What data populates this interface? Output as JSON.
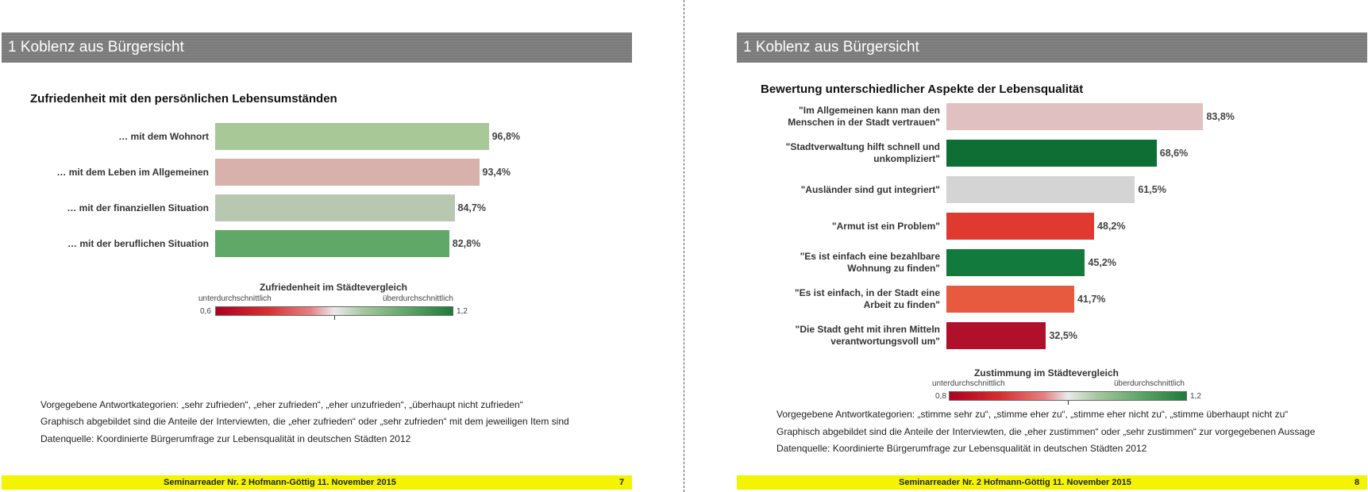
{
  "left": {
    "header": "1 Koblenz aus Bürgersicht",
    "subtitle": "Zufriedenheit mit den persönlichen Lebensumständen",
    "legend": {
      "title": "Zufriedenheit im Städtevergleich",
      "low_label": "unterdurchschnittlich",
      "high_label": "überdurchschnittlich",
      "min": "0,6",
      "max": "1,2"
    },
    "notes": [
      "Vorgegebene Antwortkategorien:  „sehr zufrieden“, „eher zufrieden“, „eher unzufrieden“, „überhaupt nicht zufrieden“",
      "Graphisch abgebildet sind die Anteile der Interviewten, die „eher zufrieden“ oder „sehr zufrieden“ mit dem jeweiligen Item sind",
      "Datenquelle: Koordinierte Bürgerumfrage zur Lebensqualität in deutschen Städten 2012"
    ],
    "footer": "Seminarreader Nr. 2 Hofmann-Göttig 11. November 2015",
    "page_number": "7"
  },
  "right": {
    "header": "1 Koblenz aus Bürgersicht",
    "subtitle": "Bewertung unterschiedlicher Aspekte der Lebensqualität",
    "legend": {
      "title": "Zustimmung im Städtevergleich",
      "low_label": "unterdurchschnittlich",
      "high_label": "überdurchschnittlich",
      "min": "0,8",
      "max": "1,2"
    },
    "notes": [
      "Vorgegebene Antwortkategorien:  „stimme sehr zu“, „stimme eher zu“, „stimme eher nicht zu“, „stimme überhaupt nicht zu“",
      "Graphisch abgebildet sind die Anteile der Interviewten, die „eher zustimmen“ oder „sehr zustimmen“ zur vorgegebenen Aussage",
      "Datenquelle: Koordinierte Bürgerumfrage zur Lebensqualität in deutschen Städten 2012"
    ],
    "footer": "Seminarreader Nr. 2 Hofmann-Göttig 11. November 2015",
    "page_number": "8"
  },
  "chart_data": [
    {
      "type": "bar",
      "orientation": "horizontal",
      "title": "Zufriedenheit mit den persönlichen Lebensumständen",
      "categories": [
        "… mit dem Wohnort",
        "… mit dem Leben im Allgemeinen",
        "… mit der finanziellen Situation",
        "… mit der beruflichen Situation"
      ],
      "values": [
        96.8,
        93.4,
        84.7,
        82.8
      ],
      "value_labels": [
        "96,8%",
        "93,4%",
        "84,7%",
        "82,8%"
      ],
      "bar_colors": [
        "#a8c898",
        "#d8b0ac",
        "#b8c8b0",
        "#5fa868"
      ],
      "xlim": [
        0,
        100
      ],
      "unit": "%"
    },
    {
      "type": "bar",
      "orientation": "horizontal",
      "title": "Bewertung unterschiedlicher Aspekte der Lebensqualität",
      "categories": [
        [
          "\"Im Allgemeinen kann man den",
          "Menschen in der Stadt vertrauen\""
        ],
        [
          "\"Stadtverwaltung hilft schnell und",
          "unkompliziert\""
        ],
        [
          "\"Ausländer sind gut integriert\""
        ],
        [
          "\"Armut ist ein Problem\""
        ],
        [
          "\"Es ist einfach eine bezahlbare",
          "Wohnung zu finden\""
        ],
        [
          "\"Es ist einfach, in der Stadt eine",
          "Arbeit zu finden\""
        ],
        [
          "\"Die Stadt geht mit ihren Mitteln",
          "verantwortungsvoll um\""
        ]
      ],
      "values": [
        83.8,
        68.6,
        61.5,
        48.2,
        45.2,
        41.7,
        32.5
      ],
      "value_labels": [
        "83,8%",
        "68,6%",
        "61,5%",
        "48,2%",
        "45,2%",
        "41,7%",
        "32,5%"
      ],
      "bar_colors": [
        "#e0c0c0",
        "#0e6e34",
        "#d4d4d4",
        "#e03a30",
        "#127a3c",
        "#e85a40",
        "#b0102a"
      ],
      "xlim": [
        0,
        100
      ],
      "unit": "%"
    }
  ]
}
